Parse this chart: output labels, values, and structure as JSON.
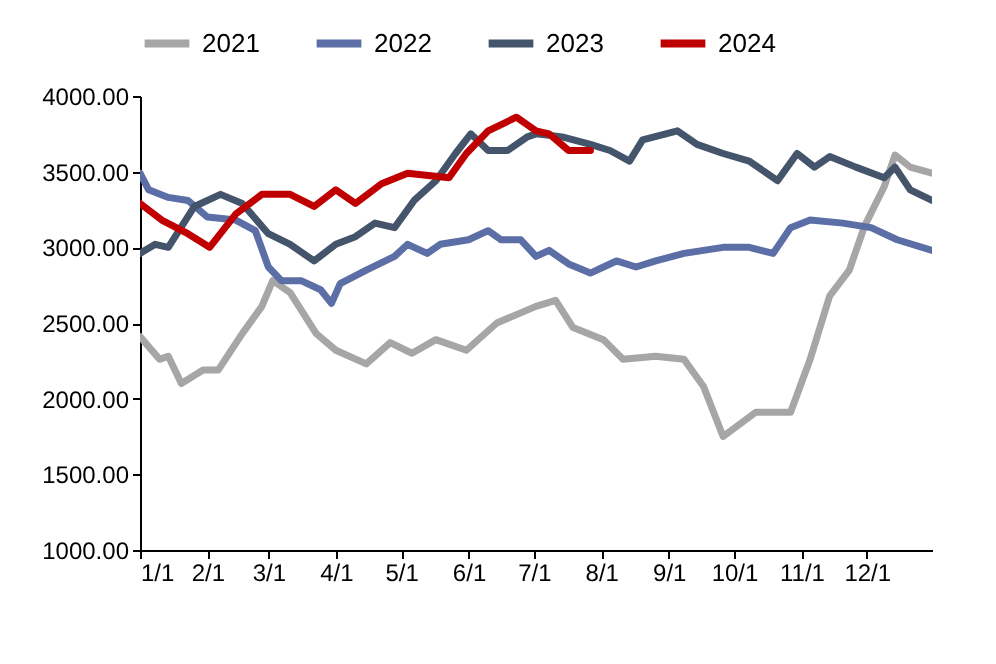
{
  "chart_data": {
    "type": "line",
    "legend": "top",
    "line_style": "solid",
    "xlim": [
      "--01-01",
      "--12-31"
    ],
    "xticks": [
      {
        "value": "--01-01",
        "label": "1/1"
      },
      {
        "value": "--02-01",
        "label": "2/1"
      },
      {
        "value": "--03-01",
        "label": "3/1"
      },
      {
        "value": "--04-01",
        "label": "4/1"
      },
      {
        "value": "--05-01",
        "label": "5/1"
      },
      {
        "value": "--06-01",
        "label": "6/1"
      },
      {
        "value": "--07-01",
        "label": "7/1"
      },
      {
        "value": "--08-01",
        "label": "8/1"
      },
      {
        "value": "--09-01",
        "label": "9/1"
      },
      {
        "value": "--10-01",
        "label": "10/1"
      },
      {
        "value": "--11-01",
        "label": "11/1"
      },
      {
        "value": "--12-01",
        "label": "12/1"
      }
    ],
    "ylim": [
      1000,
      4000
    ],
    "yticks": [
      {
        "value": 1000,
        "label": "1000.00"
      },
      {
        "value": 1500,
        "label": "1500.00"
      },
      {
        "value": 2000,
        "label": "2000.00"
      },
      {
        "value": 2500,
        "label": "2500.00"
      },
      {
        "value": 3000,
        "label": "3000.00"
      },
      {
        "value": 3500,
        "label": "3500.00"
      },
      {
        "value": 4000,
        "label": "4000.00"
      }
    ],
    "series": [
      {
        "name": "2021",
        "color": "#a6a6a6",
        "x": [
          "--01-01",
          "--01-10",
          "--01-14",
          "--01-20",
          "--01-30",
          "--02-06",
          "--02-17",
          "--02-26",
          "--03-03",
          "--03-11",
          "--03-23",
          "--04-01",
          "--04-15",
          "--04-26",
          "--05-06",
          "--05-17",
          "--05-31",
          "--06-14",
          "--07-02",
          "--07-11",
          "--07-19",
          "--08-02",
          "--08-11",
          "--08-26",
          "--09-08",
          "--09-17",
          "--09-26",
          "--10-11",
          "--10-27",
          "--11-05",
          "--11-14",
          "--11-23",
          "--11-30",
          "--12-09",
          "--12-14",
          "--12-21",
          "--12-31"
        ],
        "values": [
          2410,
          2260,
          2280,
          2100,
          2190,
          2190,
          2430,
          2610,
          2780,
          2700,
          2430,
          2320,
          2230,
          2370,
          2300,
          2390,
          2320,
          2500,
          2610,
          2650,
          2470,
          2390,
          2260,
          2280,
          2260,
          2080,
          1750,
          1910,
          1910,
          2260,
          2680,
          2850,
          3140,
          3400,
          3610,
          3530,
          3490
        ]
      },
      {
        "name": "2022",
        "color": "#5b6fa6",
        "x": [
          "--01-01",
          "--01-05",
          "--01-14",
          "--01-23",
          "--02-01",
          "--02-14",
          "--02-23",
          "--03-01",
          "--03-07",
          "--03-16",
          "--03-25",
          "--03-30",
          "--04-03",
          "--04-15",
          "--04-28",
          "--05-04",
          "--05-13",
          "--05-19",
          "--06-01",
          "--06-10",
          "--06-16",
          "--06-25",
          "--07-02",
          "--07-08",
          "--07-17",
          "--07-27",
          "--08-02",
          "--08-08",
          "--08-17",
          "--08-26",
          "--09-08",
          "--09-17",
          "--09-26",
          "--10-08",
          "--10-19",
          "--10-27",
          "--11-05",
          "--11-20",
          "--12-03",
          "--12-15",
          "--12-31"
        ],
        "values": [
          3490,
          3380,
          3330,
          3310,
          3200,
          3180,
          3110,
          2870,
          2780,
          2780,
          2720,
          2630,
          2760,
          2850,
          2940,
          3020,
          2960,
          3020,
          3050,
          3110,
          3050,
          3050,
          2940,
          2980,
          2890,
          2830,
          2870,
          2910,
          2870,
          2910,
          2960,
          2980,
          3000,
          3000,
          2960,
          3130,
          3180,
          3160,
          3130,
          3050,
          2980
        ]
      },
      {
        "name": "2023",
        "color": "#44546a",
        "x": [
          "--01-01",
          "--01-08",
          "--01-14",
          "--01-26",
          "--02-07",
          "--02-17",
          "--03-01",
          "--03-11",
          "--03-22",
          "--04-01",
          "--04-10",
          "--04-19",
          "--04-28",
          "--05-07",
          "--05-17",
          "--05-26",
          "--06-02",
          "--06-10",
          "--06-19",
          "--06-28",
          "--07-02",
          "--07-14",
          "--07-27",
          "--08-05",
          "--08-14",
          "--08-20",
          "--09-05",
          "--09-14",
          "--09-26",
          "--10-08",
          "--10-21",
          "--10-30",
          "--11-07",
          "--11-14",
          "--11-26",
          "--12-09",
          "--12-14",
          "--12-21",
          "--12-31"
        ],
        "values": [
          2960,
          3020,
          3000,
          3270,
          3350,
          3290,
          3090,
          3020,
          2910,
          3020,
          3070,
          3160,
          3130,
          3310,
          3440,
          3620,
          3750,
          3640,
          3640,
          3730,
          3750,
          3730,
          3680,
          3640,
          3570,
          3710,
          3770,
          3680,
          3620,
          3570,
          3440,
          3620,
          3530,
          3600,
          3530,
          3460,
          3530,
          3380,
          3310
        ]
      },
      {
        "name": "2024",
        "color": "#c00000",
        "x": [
          "--01-01",
          "--01-11",
          "--01-23",
          "--02-02",
          "--02-14",
          "--02-26",
          "--03-11",
          "--03-22",
          "--04-01",
          "--04-10",
          "--04-22",
          "--05-04",
          "--05-23",
          "--05-31",
          "--06-10",
          "--06-23",
          "--07-02",
          "--07-08",
          "--07-17",
          "--07-27"
        ],
        "values": [
          3290,
          3180,
          3090,
          3000,
          3220,
          3350,
          3350,
          3270,
          3380,
          3290,
          3420,
          3490,
          3460,
          3620,
          3770,
          3860,
          3770,
          3750,
          3640,
          3640
        ]
      }
    ]
  }
}
